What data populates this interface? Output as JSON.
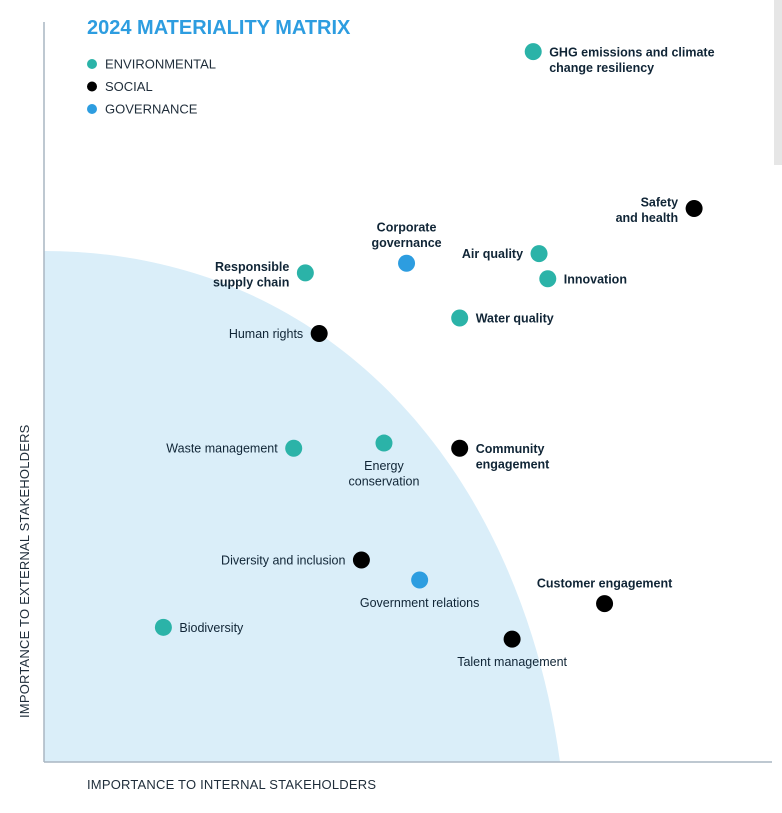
{
  "chart_data": {
    "type": "scatter",
    "title": "2024 MATERIALITY MATRIX",
    "xlabel": "IMPORTANCE TO INTERNAL STAKEHOLDERS",
    "ylabel": "IMPORTANCE TO EXTERNAL STAKEHOLDERS",
    "xlim": [
      0,
      100
    ],
    "ylim": [
      0,
      100
    ],
    "grid": false,
    "legend_position": "top-left",
    "colors": {
      "ENVIRONMENTAL": "#2bb3a8",
      "SOCIAL": "#000000",
      "GOVERNANCE": "#2d9de0",
      "region": "#daeef9",
      "title": "#2d9de0",
      "axis": "#a9b6c2"
    },
    "legend": [
      "ENVIRONMENTAL",
      "SOCIAL",
      "GOVERNANCE"
    ],
    "points": [
      {
        "label": "GHG emissions and climate change resiliency",
        "lines": [
          "GHG emissions and climate",
          "change resiliency"
        ],
        "category": "ENVIRONMENTAL",
        "x": 67.2,
        "y": 96.0,
        "bold": true,
        "label_pos": "right"
      },
      {
        "label": "Safety and health",
        "lines": [
          "Safety",
          "and health"
        ],
        "category": "SOCIAL",
        "x": 89.3,
        "y": 74.8,
        "bold": true,
        "label_pos": "left"
      },
      {
        "label": "Corporate governance",
        "lines": [
          "Corporate",
          "governance"
        ],
        "category": "GOVERNANCE",
        "x": 49.8,
        "y": 67.4,
        "bold": true,
        "label_pos": "above"
      },
      {
        "label": "Air quality",
        "lines": [
          "Air quality"
        ],
        "category": "ENVIRONMENTAL",
        "x": 68.0,
        "y": 68.7,
        "bold": true,
        "label_pos": "left"
      },
      {
        "label": "Innovation",
        "lines": [
          "Innovation"
        ],
        "category": "ENVIRONMENTAL",
        "x": 69.2,
        "y": 65.3,
        "bold": true,
        "label_pos": "right"
      },
      {
        "label": "Responsible supply chain",
        "lines": [
          "Responsible",
          "supply chain"
        ],
        "category": "ENVIRONMENTAL",
        "x": 35.9,
        "y": 66.1,
        "bold": true,
        "label_pos": "left"
      },
      {
        "label": "Water quality",
        "lines": [
          "Water quality"
        ],
        "category": "ENVIRONMENTAL",
        "x": 57.1,
        "y": 60.0,
        "bold": true,
        "label_pos": "right"
      },
      {
        "label": "Human rights",
        "lines": [
          "Human rights"
        ],
        "category": "SOCIAL",
        "x": 37.8,
        "y": 57.9,
        "bold": false,
        "label_pos": "left"
      },
      {
        "label": "Waste management",
        "lines": [
          "Waste management"
        ],
        "category": "ENVIRONMENTAL",
        "x": 34.3,
        "y": 42.4,
        "bold": false,
        "label_pos": "left"
      },
      {
        "label": "Energy conservation",
        "lines": [
          "Energy",
          "conservation"
        ],
        "category": "ENVIRONMENTAL",
        "x": 46.7,
        "y": 43.1,
        "bold": false,
        "label_pos": "below"
      },
      {
        "label": "Community engagement",
        "lines": [
          "Community",
          "engagement"
        ],
        "category": "SOCIAL",
        "x": 57.1,
        "y": 42.4,
        "bold": true,
        "label_pos": "right"
      },
      {
        "label": "Diversity and inclusion",
        "lines": [
          "Diversity and inclusion"
        ],
        "category": "SOCIAL",
        "x": 43.6,
        "y": 27.3,
        "bold": false,
        "label_pos": "left"
      },
      {
        "label": "Government relations",
        "lines": [
          "Government relations"
        ],
        "category": "GOVERNANCE",
        "x": 51.6,
        "y": 24.6,
        "bold": false,
        "label_pos": "below"
      },
      {
        "label": "Biodiversity",
        "lines": [
          "Biodiversity"
        ],
        "category": "ENVIRONMENTAL",
        "x": 16.4,
        "y": 18.2,
        "bold": false,
        "label_pos": "right"
      },
      {
        "label": "Customer engagement",
        "lines": [
          "Customer engagement"
        ],
        "category": "SOCIAL",
        "x": 77.0,
        "y": 21.4,
        "bold": true,
        "label_pos": "above"
      },
      {
        "label": "Talent management",
        "lines": [
          "Talent management"
        ],
        "category": "SOCIAL",
        "x": 64.3,
        "y": 16.6,
        "bold": false,
        "label_pos": "below"
      }
    ]
  }
}
